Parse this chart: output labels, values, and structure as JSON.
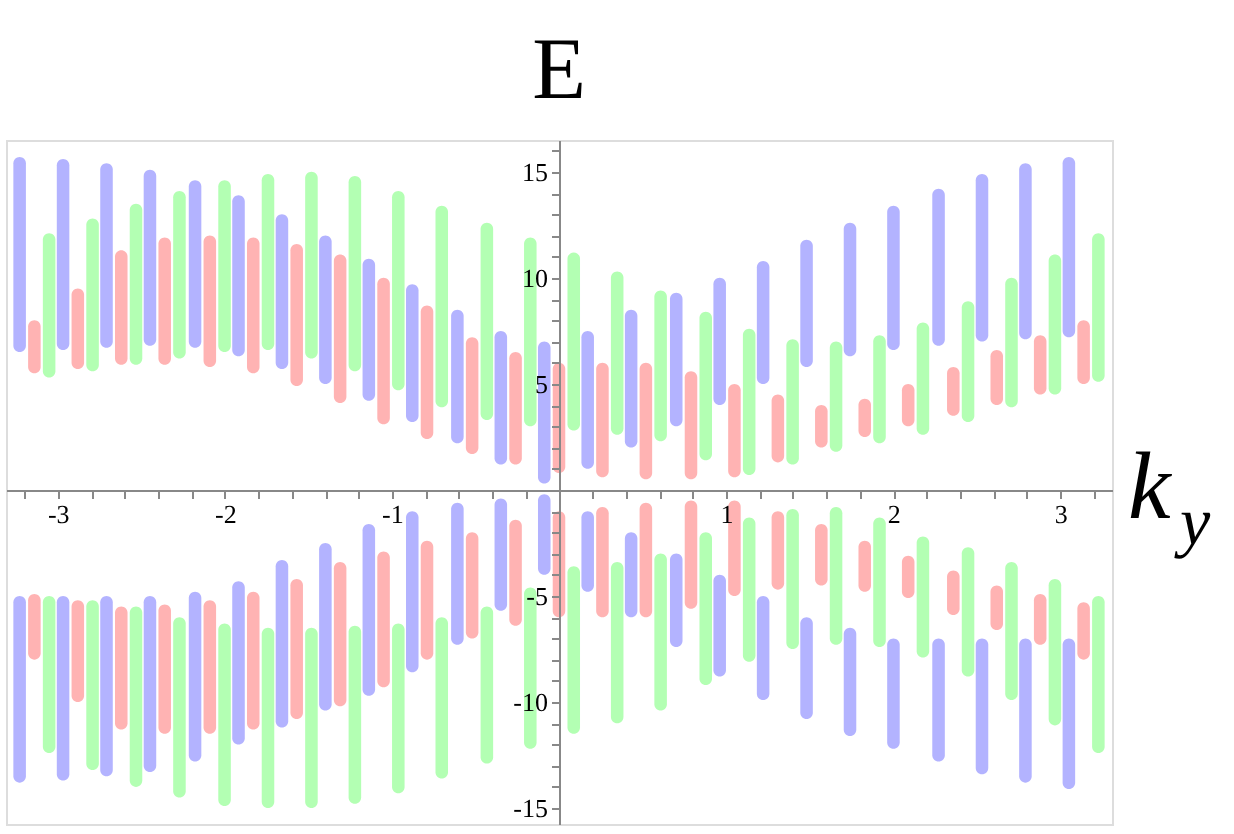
{
  "chart_data": {
    "type": "bar",
    "xlabel": "k$_{y}$",
    "ylabel": "E",
    "x": [
      -3.14,
      -2.88,
      -2.62,
      -2.36,
      -2.09,
      -1.83,
      -1.57,
      -1.31,
      -1.05,
      -0.79,
      -0.52,
      -0.26,
      0,
      0.26,
      0.52,
      0.79,
      1.05,
      1.31,
      1.57,
      1.83,
      2.09,
      2.36,
      2.62,
      2.88,
      3.14
    ],
    "xlim": [
      -3.25,
      3.25
    ],
    "ylim": [
      -15.75,
      16.5
    ],
    "xticks": [
      {
        "value": -3.2,
        "label": null
      },
      -3,
      {
        "value": -2.8,
        "label": null
      },
      {
        "value": -2.6,
        "label": null
      },
      {
        "value": -2.4,
        "label": null
      },
      {
        "value": -2.2,
        "label": null
      },
      -2,
      {
        "value": -1.8,
        "label": null
      },
      {
        "value": -1.6,
        "label": null
      },
      {
        "value": -1.4,
        "label": null
      },
      {
        "value": -1.2,
        "label": null
      },
      -1,
      {
        "value": -0.8,
        "label": null
      },
      {
        "value": -0.6,
        "label": null
      },
      {
        "value": -0.4,
        "label": null
      },
      {
        "value": -0.2,
        "label": null
      },
      {
        "value": 0.2,
        "label": null
      },
      {
        "value": 0.4,
        "label": null
      },
      {
        "value": 0.6,
        "label": null
      },
      {
        "value": 0.8,
        "label": null
      },
      1,
      {
        "value": 1.2,
        "label": null
      },
      {
        "value": 1.4,
        "label": null
      },
      {
        "value": 1.6,
        "label": null
      },
      {
        "value": 1.8,
        "label": null
      },
      2,
      {
        "value": 2.2,
        "label": null
      },
      {
        "value": 2.4,
        "label": null
      },
      {
        "value": 2.6,
        "label": null
      },
      {
        "value": 2.8,
        "label": null
      },
      3,
      {
        "value": 3.2,
        "label": null
      }
    ],
    "yticks": [
      -15,
      {
        "value": -14,
        "label": null
      },
      {
        "value": -13,
        "label": null
      },
      {
        "value": -12,
        "label": null
      },
      {
        "value": -11,
        "label": null
      },
      -10,
      {
        "value": -9,
        "label": null
      },
      {
        "value": -8,
        "label": null
      },
      {
        "value": -7,
        "label": null
      },
      {
        "value": -6,
        "label": null
      },
      -5,
      {
        "value": -4,
        "label": null
      },
      {
        "value": -3,
        "label": null
      },
      {
        "value": -2,
        "label": null
      },
      {
        "value": -1,
        "label": null
      },
      {
        "value": 1,
        "label": null
      },
      {
        "value": 2,
        "label": null
      },
      {
        "value": 3,
        "label": null
      },
      {
        "value": 4,
        "label": null
      },
      5,
      {
        "value": 6,
        "label": null
      },
      {
        "value": 7,
        "label": null
      },
      {
        "value": 8,
        "label": null
      },
      {
        "value": 9,
        "label": null
      },
      10,
      {
        "value": 11,
        "label": null
      },
      {
        "value": 12,
        "label": null
      },
      {
        "value": 13,
        "label": null
      },
      {
        "value": 14,
        "label": null
      },
      15,
      {
        "value": 16,
        "label": null
      }
    ],
    "grid": false,
    "series": [
      {
        "color": "#b3b3ff",
        "base": [
          6.5,
          6.6,
          6.7,
          6.8,
          6.7,
          6.3,
          5.7,
          5,
          4.2,
          3.2,
          2.2,
          1.2,
          0.3,
          1,
          2,
          3,
          4,
          5,
          5.8,
          6.3,
          6.6,
          6.8,
          7,
          7.1,
          7.2
        ],
        "values": [
          9.2,
          9,
          8.7,
          8.3,
          7.9,
          7.6,
          7.3,
          7,
          6.7,
          6.5,
          6.3,
          6.3,
          6.7,
          6.5,
          6.5,
          6.3,
          6,
          5.8,
          6,
          6.3,
          6.8,
          7.4,
          7.9,
          8.3,
          8.5
        ]
      },
      {
        "color": "#b3b3ff",
        "base": [
          -13.8,
          -13.7,
          -13.5,
          -13.3,
          -12.8,
          -12,
          -11.2,
          -10.4,
          -9.7,
          -8.6,
          -7.3,
          -5.7,
          -4,
          -4.8,
          -6,
          -7.4,
          -8.8,
          -9.9,
          -10.8,
          -11.6,
          -12.2,
          -12.8,
          -13.4,
          -13.8,
          -14.1
        ],
        "values": [
          8.8,
          8.7,
          8.5,
          8.3,
          8,
          7.7,
          7.9,
          7.9,
          8.1,
          7.6,
          6.7,
          5.3,
          3.8,
          3.8,
          4,
          4.4,
          4.8,
          4.9,
          4.8,
          5.1,
          5.2,
          5.8,
          6.4,
          6.8,
          7.1
        ]
      },
      {
        "color": "#ffb3b3",
        "base": [
          5.5,
          5.7,
          5.9,
          5.9,
          5.8,
          5.5,
          4.9,
          4.1,
          3.1,
          2.4,
          1.7,
          1.2,
          0.8,
          0.6,
          0.5,
          0.5,
          0.6,
          1.3,
          2,
          2.5,
          3,
          3.5,
          4,
          4.5,
          5
        ],
        "values": [
          2.5,
          3.8,
          5.4,
          6,
          6.2,
          6.4,
          6.7,
          7,
          6.9,
          6.3,
          5.5,
          5.3,
          5.2,
          5.4,
          5.5,
          5.1,
          4.4,
          3.2,
          2,
          1.8,
          2,
          2.3,
          2.6,
          2.8,
          3
        ]
      },
      {
        "color": "#ffb3b3",
        "base": [
          -8,
          -10,
          -11.3,
          -11.5,
          -11.5,
          -11.3,
          -10.8,
          -10.2,
          -9.3,
          -8,
          -7,
          -6.4,
          -6,
          -6,
          -6,
          -5.6,
          -5,
          -4.7,
          -4.5,
          -4.8,
          -5.1,
          -5.9,
          -6.6,
          -7.3,
          -8
        ],
        "values": [
          3.1,
          4.8,
          5.8,
          6.1,
          6.3,
          6.5,
          6.6,
          6.8,
          6.4,
          5.6,
          5,
          5,
          5,
          5.2,
          5.4,
          5.1,
          4.5,
          3.7,
          2.9,
          2.4,
          2,
          2.1,
          2.1,
          2.4,
          2.7
        ]
      },
      {
        "color": "#b3ffb3",
        "base": [
          5.3,
          5.6,
          5.9,
          6.2,
          6.5,
          6.6,
          6.2,
          5.6,
          4.7,
          3.9,
          3.3,
          3,
          2.8,
          2.6,
          2.3,
          1.4,
          0.7,
          1.2,
          1.8,
          2.2,
          2.6,
          3.2,
          3.9,
          4.5,
          5.1
        ],
        "values": [
          6.8,
          7.2,
          7.6,
          7.9,
          8.1,
          8.3,
          8.8,
          9.2,
          9.4,
          9.5,
          9.3,
          8.9,
          8.4,
          7.7,
          7.1,
          7,
          6.9,
          5.9,
          5.2,
          5.1,
          5.3,
          5.7,
          6.1,
          6.6,
          7
        ]
      },
      {
        "color": "#b3ffb3",
        "base": [
          -12.4,
          -13.2,
          -14,
          -14.5,
          -14.9,
          -15,
          -15,
          -14.8,
          -14.3,
          -13.6,
          -12.9,
          -12.2,
          -11.5,
          -11,
          -10.4,
          -9.2,
          -8.1,
          -7.5,
          -7.3,
          -7.4,
          -7.9,
          -8.8,
          -9.9,
          -11.1,
          -12.4
        ],
        "values": [
          7.4,
          8,
          8.5,
          8.5,
          8.6,
          8.5,
          8.5,
          8.4,
          8,
          7.6,
          7.4,
          7.6,
          7.9,
          7.6,
          7.4,
          7.2,
          6.8,
          6.6,
          6.5,
          6.1,
          5.7,
          6.1,
          6.5,
          6.9,
          7.4
        ]
      }
    ]
  }
}
